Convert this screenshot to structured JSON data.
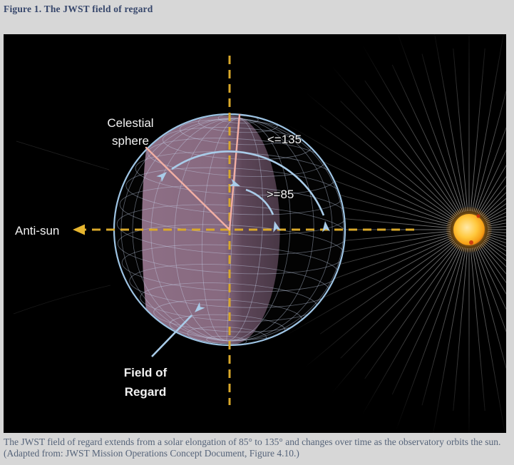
{
  "figure_title": "Figure 1. The JWST field of regard",
  "diagram": {
    "celestial_sphere_label": {
      "line1": "Celestial",
      "line2": "sphere"
    },
    "max_elongation_label": "<=135",
    "min_elongation_label": ">=85",
    "anti_sun_label": "Anti-sun",
    "field_of_regard_label": {
      "line1": "Field of",
      "line2": "Regard"
    },
    "colors": {
      "background": "#000000",
      "sphere_outline_blue": "#a3c8e8",
      "field_of_regard_purple": "#aa84a0",
      "axis_gold": "#d9a82a",
      "elongation_line_pink": "#f2afa4",
      "sun_orange": "#f5a623"
    }
  },
  "caption": {
    "line1": "The JWST field of regard extends from a solar elongation of 85° to 135° and changes over time as the observatory orbits the sun.",
    "line2": "(Adapted from: JWST Mission Operations Concept Document, Figure 4.10.)"
  }
}
